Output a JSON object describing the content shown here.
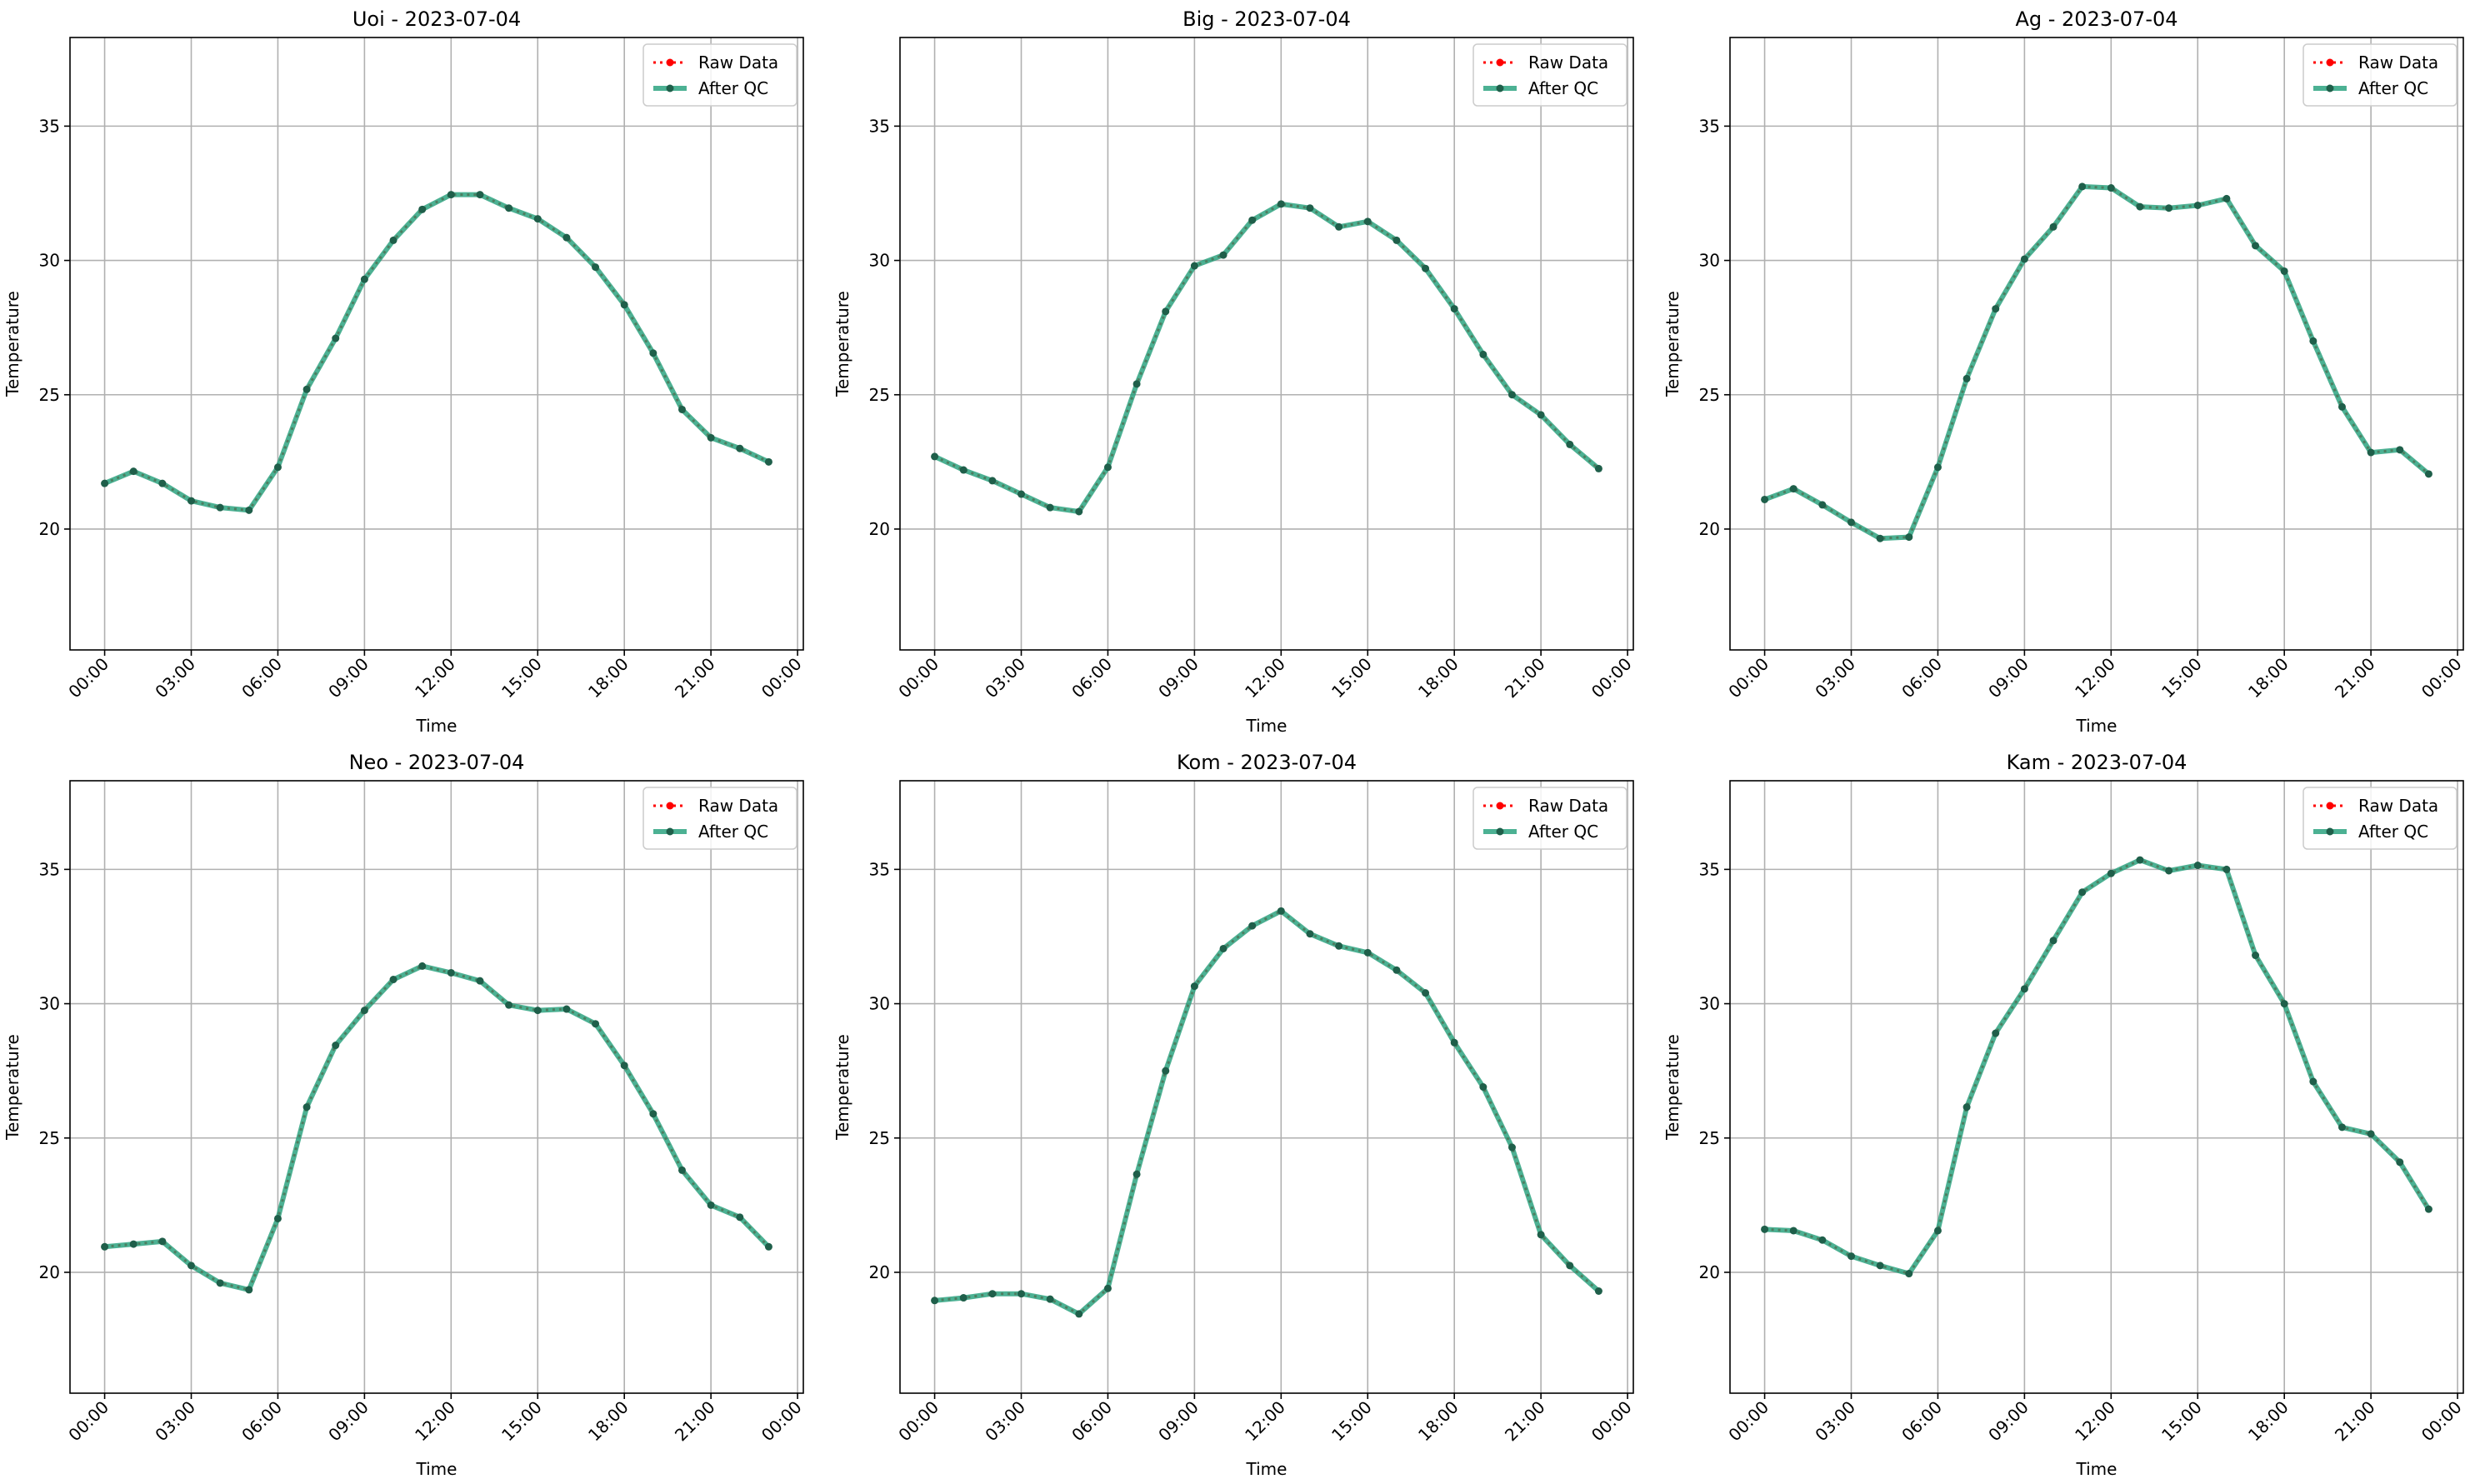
{
  "chart_data": [
    {
      "type": "line",
      "title": "Uoi - 2023-07-04",
      "xlabel": "Time",
      "ylabel": "Temperature",
      "xticks": [
        "00:00",
        "03:00",
        "06:00",
        "09:00",
        "12:00",
        "15:00",
        "18:00",
        "21:00",
        "00:00"
      ],
      "yticks": [
        20,
        25,
        30,
        35
      ],
      "xlim_hours": [
        -1.2,
        24.2
      ],
      "ylim": [
        15.5,
        38.3
      ],
      "grid": true,
      "legend": {
        "placement": "top-right",
        "entries": [
          "Raw Data",
          "After QC"
        ]
      },
      "x_hours": [
        0,
        1,
        2,
        3,
        4,
        5,
        6,
        7,
        8,
        9,
        10,
        11,
        12,
        13,
        14,
        15,
        16,
        17,
        18,
        19,
        20,
        21,
        22,
        23
      ],
      "series": [
        {
          "name": "Raw Data",
          "values": [
            21.7,
            22.15,
            21.7,
            21.05,
            20.8,
            20.7,
            22.3,
            25.2,
            27.1,
            29.3,
            30.75,
            31.9,
            32.45,
            32.45,
            31.95,
            31.55,
            30.85,
            29.75,
            28.35,
            26.55,
            24.45,
            23.4,
            23.0,
            22.5
          ]
        },
        {
          "name": "After QC",
          "values": [
            21.7,
            22.15,
            21.7,
            21.05,
            20.8,
            20.7,
            22.3,
            25.2,
            27.1,
            29.3,
            30.75,
            31.9,
            32.45,
            32.45,
            31.95,
            31.55,
            30.85,
            29.75,
            28.35,
            26.55,
            24.45,
            23.4,
            23.0,
            22.5
          ]
        }
      ]
    },
    {
      "type": "line",
      "title": "Big - 2023-07-04",
      "xlabel": "Time",
      "ylabel": "Temperature",
      "xticks": [
        "00:00",
        "03:00",
        "06:00",
        "09:00",
        "12:00",
        "15:00",
        "18:00",
        "21:00",
        "00:00"
      ],
      "yticks": [
        20,
        25,
        30,
        35
      ],
      "xlim_hours": [
        -1.2,
        24.2
      ],
      "ylim": [
        15.5,
        38.3
      ],
      "grid": true,
      "legend": {
        "placement": "top-right",
        "entries": [
          "Raw Data",
          "After QC"
        ]
      },
      "x_hours": [
        0,
        1,
        2,
        3,
        4,
        5,
        6,
        7,
        8,
        9,
        10,
        11,
        12,
        13,
        14,
        15,
        16,
        17,
        18,
        19,
        20,
        21,
        22,
        23
      ],
      "series": [
        {
          "name": "Raw Data",
          "values": [
            22.7,
            22.2,
            21.8,
            21.3,
            20.8,
            20.65,
            22.3,
            25.4,
            28.1,
            29.8,
            30.2,
            31.5,
            32.1,
            31.95,
            31.25,
            31.45,
            30.75,
            29.7,
            28.2,
            26.5,
            25.0,
            24.25,
            23.15,
            22.25
          ]
        },
        {
          "name": "After QC",
          "values": [
            22.7,
            22.2,
            21.8,
            21.3,
            20.8,
            20.65,
            22.3,
            25.4,
            28.1,
            29.8,
            30.2,
            31.5,
            32.1,
            31.95,
            31.25,
            31.45,
            30.75,
            29.7,
            28.2,
            26.5,
            25.0,
            24.25,
            23.15,
            22.25
          ]
        }
      ]
    },
    {
      "type": "line",
      "title": "Ag - 2023-07-04",
      "xlabel": "Time",
      "ylabel": "Temperature",
      "xticks": [
        "00:00",
        "03:00",
        "06:00",
        "09:00",
        "12:00",
        "15:00",
        "18:00",
        "21:00",
        "00:00"
      ],
      "yticks": [
        20,
        25,
        30,
        35
      ],
      "xlim_hours": [
        -1.2,
        24.2
      ],
      "ylim": [
        15.5,
        38.3
      ],
      "grid": true,
      "legend": {
        "placement": "top-right",
        "entries": [
          "Raw Data",
          "After QC"
        ]
      },
      "x_hours": [
        0,
        1,
        2,
        3,
        4,
        5,
        6,
        7,
        8,
        9,
        10,
        11,
        12,
        13,
        14,
        15,
        16,
        17,
        18,
        19,
        20,
        21,
        22,
        23
      ],
      "series": [
        {
          "name": "Raw Data",
          "values": [
            21.1,
            21.5,
            20.9,
            20.25,
            19.65,
            19.7,
            22.3,
            25.6,
            28.2,
            30.05,
            31.25,
            32.75,
            32.7,
            32.0,
            31.95,
            32.05,
            32.3,
            30.55,
            29.6,
            27.0,
            24.55,
            22.85,
            22.95,
            22.05
          ]
        },
        {
          "name": "After QC",
          "values": [
            21.1,
            21.5,
            20.9,
            20.25,
            19.65,
            19.7,
            22.3,
            25.6,
            28.2,
            30.05,
            31.25,
            32.75,
            32.7,
            32.0,
            31.95,
            32.05,
            32.3,
            30.55,
            29.6,
            27.0,
            24.55,
            22.85,
            22.95,
            22.05
          ]
        }
      ]
    },
    {
      "type": "line",
      "title": "Neo - 2023-07-04",
      "xlabel": "Time",
      "ylabel": "Temperature",
      "xticks": [
        "00:00",
        "03:00",
        "06:00",
        "09:00",
        "12:00",
        "15:00",
        "18:00",
        "21:00",
        "00:00"
      ],
      "yticks": [
        20,
        25,
        30,
        35
      ],
      "xlim_hours": [
        -1.2,
        24.2
      ],
      "ylim": [
        15.5,
        38.3
      ],
      "grid": true,
      "legend": {
        "placement": "top-right",
        "entries": [
          "Raw Data",
          "After QC"
        ]
      },
      "x_hours": [
        0,
        1,
        2,
        3,
        4,
        5,
        6,
        7,
        8,
        9,
        10,
        11,
        12,
        13,
        14,
        15,
        16,
        17,
        18,
        19,
        20,
        21,
        22,
        23
      ],
      "series": [
        {
          "name": "Raw Data",
          "values": [
            20.95,
            21.05,
            21.15,
            20.25,
            19.6,
            19.35,
            22.0,
            26.15,
            28.45,
            29.75,
            30.9,
            31.4,
            31.15,
            30.85,
            29.95,
            29.75,
            29.8,
            29.25,
            27.7,
            25.9,
            23.8,
            22.5,
            22.05,
            20.95
          ]
        },
        {
          "name": "After QC",
          "values": [
            20.95,
            21.05,
            21.15,
            20.25,
            19.6,
            19.35,
            22.0,
            26.15,
            28.45,
            29.75,
            30.9,
            31.4,
            31.15,
            30.85,
            29.95,
            29.75,
            29.8,
            29.25,
            27.7,
            25.9,
            23.8,
            22.5,
            22.05,
            20.95
          ]
        }
      ]
    },
    {
      "type": "line",
      "title": "Kom - 2023-07-04",
      "xlabel": "Time",
      "ylabel": "Temperature",
      "xticks": [
        "00:00",
        "03:00",
        "06:00",
        "09:00",
        "12:00",
        "15:00",
        "18:00",
        "21:00",
        "00:00"
      ],
      "yticks": [
        20,
        25,
        30,
        35
      ],
      "xlim_hours": [
        -1.2,
        24.2
      ],
      "ylim": [
        15.5,
        38.3
      ],
      "grid": true,
      "legend": {
        "placement": "top-right",
        "entries": [
          "Raw Data",
          "After QC"
        ]
      },
      "x_hours": [
        0,
        1,
        2,
        3,
        4,
        5,
        6,
        7,
        8,
        9,
        10,
        11,
        12,
        13,
        14,
        15,
        16,
        17,
        18,
        19,
        20,
        21,
        22,
        23
      ],
      "series": [
        {
          "name": "Raw Data",
          "values": [
            18.95,
            19.05,
            19.2,
            19.2,
            19.0,
            18.45,
            19.4,
            23.65,
            27.5,
            30.65,
            32.05,
            32.9,
            33.45,
            32.6,
            32.15,
            31.9,
            31.25,
            30.4,
            28.55,
            26.9,
            24.65,
            21.4,
            20.25,
            19.3
          ]
        },
        {
          "name": "After QC",
          "values": [
            18.95,
            19.05,
            19.2,
            19.2,
            19.0,
            18.45,
            19.4,
            23.65,
            27.5,
            30.65,
            32.05,
            32.9,
            33.45,
            32.6,
            32.15,
            31.9,
            31.25,
            30.4,
            28.55,
            26.9,
            24.65,
            21.4,
            20.25,
            19.3
          ]
        }
      ]
    },
    {
      "type": "line",
      "title": "Kam - 2023-07-04",
      "xlabel": "Time",
      "ylabel": "Temperature",
      "xticks": [
        "00:00",
        "03:00",
        "06:00",
        "09:00",
        "12:00",
        "15:00",
        "18:00",
        "21:00",
        "00:00"
      ],
      "yticks": [
        20,
        25,
        30,
        35
      ],
      "xlim_hours": [
        -1.2,
        24.2
      ],
      "ylim": [
        15.5,
        38.3
      ],
      "grid": true,
      "legend": {
        "placement": "top-right",
        "entries": [
          "Raw Data",
          "After QC"
        ]
      },
      "x_hours": [
        0,
        1,
        2,
        3,
        4,
        5,
        6,
        7,
        8,
        9,
        10,
        11,
        12,
        13,
        14,
        15,
        16,
        17,
        18,
        19,
        20,
        21,
        22,
        23
      ],
      "series": [
        {
          "name": "Raw Data",
          "values": [
            21.6,
            21.55,
            21.2,
            20.6,
            20.25,
            19.95,
            21.55,
            26.15,
            28.9,
            30.55,
            32.35,
            34.15,
            34.85,
            35.35,
            34.95,
            35.15,
            35.0,
            31.8,
            30.0,
            27.1,
            25.4,
            25.15,
            24.1,
            22.35
          ]
        },
        {
          "name": "After QC",
          "values": [
            21.6,
            21.55,
            21.2,
            20.6,
            20.25,
            19.95,
            21.55,
            26.15,
            28.9,
            30.55,
            32.35,
            34.15,
            34.85,
            35.35,
            34.95,
            35.15,
            35.0,
            31.8,
            30.0,
            27.1,
            25.4,
            25.15,
            24.1,
            22.35
          ]
        }
      ]
    }
  ],
  "style": {
    "raw_color": "#ff0000",
    "qc_line_color": "#1f9e78",
    "qc_marker_color": "#1f5f4a",
    "grid_color": "#b0b0b0",
    "axis_color": "#000000"
  }
}
